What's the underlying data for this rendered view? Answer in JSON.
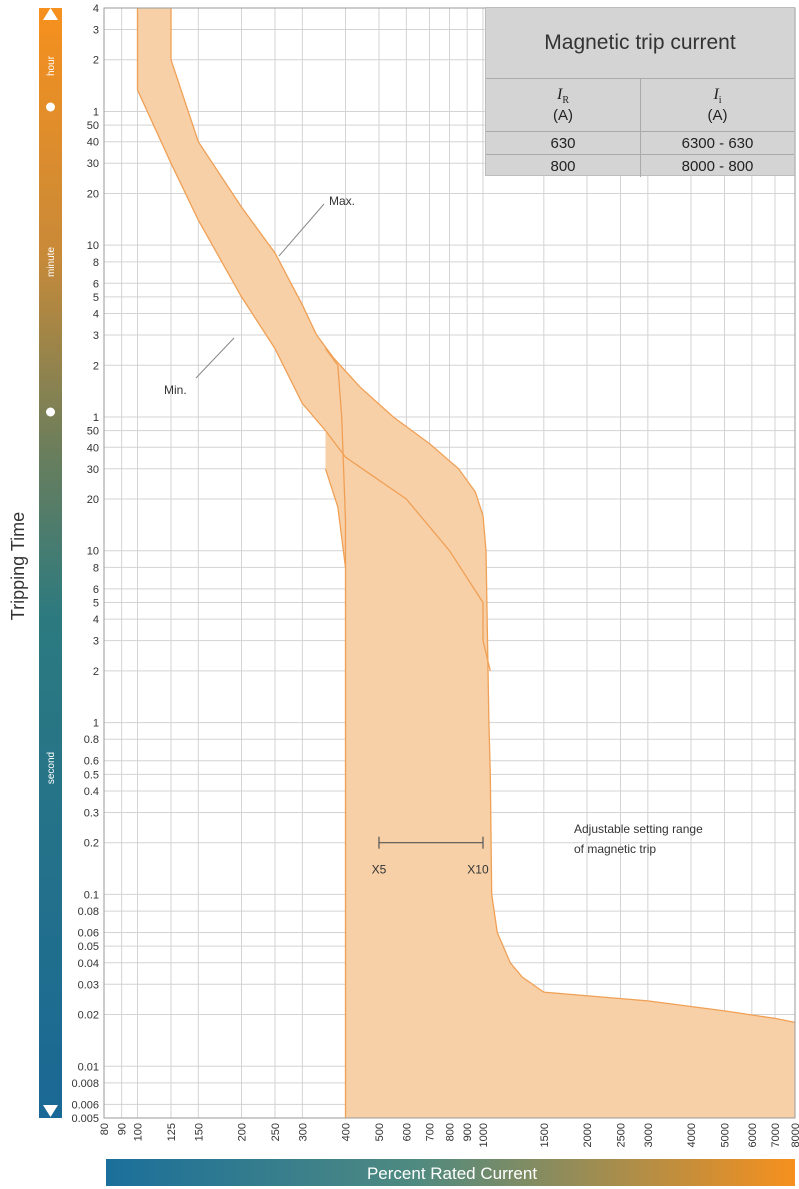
{
  "chart_data": {
    "type": "line",
    "title": "",
    "xlabel": "Percent Rated Current",
    "ylabel": "Tripping Time",
    "x_scale": "log",
    "y_scale": "log",
    "xlim": [
      80,
      8000
    ],
    "x_ticks": [
      80,
      90,
      100,
      125,
      150,
      200,
      250,
      300,
      400,
      500,
      600,
      700,
      800,
      900,
      1000,
      1500,
      2000,
      2500,
      3000,
      4000,
      5000,
      6000,
      7000,
      8000
    ],
    "x_tick_labels": [
      "80",
      "90",
      "100",
      "125",
      "150",
      "200",
      "250",
      "300",
      "400",
      "500",
      "600",
      "700",
      "800",
      "900",
      "1000",
      "1500",
      "2000",
      "2500",
      "3000",
      "4000",
      "5000",
      "6000",
      "7000",
      "8000"
    ],
    "y_ticks": [
      {
        "label": "4",
        "seconds": 14400
      },
      {
        "label": "3",
        "seconds": 10800
      },
      {
        "label": "2",
        "seconds": 7200
      },
      {
        "label": "1",
        "seconds": 3600
      },
      {
        "label": "50",
        "seconds": 3000
      },
      {
        "label": "40",
        "seconds": 2400
      },
      {
        "label": "30",
        "seconds": 1800
      },
      {
        "label": "20",
        "seconds": 1200
      },
      {
        "label": "10",
        "seconds": 600
      },
      {
        "label": "8",
        "seconds": 480
      },
      {
        "label": "6",
        "seconds": 360
      },
      {
        "label": "5",
        "seconds": 300
      },
      {
        "label": "4",
        "seconds": 240
      },
      {
        "label": "3",
        "seconds": 180
      },
      {
        "label": "2",
        "seconds": 120
      },
      {
        "label": "1",
        "seconds": 60
      },
      {
        "label": "50",
        "seconds": 50
      },
      {
        "label": "40",
        "seconds": 40
      },
      {
        "label": "30",
        "seconds": 30
      },
      {
        "label": "20",
        "seconds": 20
      },
      {
        "label": "10",
        "seconds": 10
      },
      {
        "label": "8",
        "seconds": 8
      },
      {
        "label": "6",
        "seconds": 6
      },
      {
        "label": "5",
        "seconds": 5
      },
      {
        "label": "4",
        "seconds": 4
      },
      {
        "label": "3",
        "seconds": 3
      },
      {
        "label": "2",
        "seconds": 2
      },
      {
        "label": "1",
        "seconds": 1
      },
      {
        "label": "0.8",
        "seconds": 0.8
      },
      {
        "label": "0.6",
        "seconds": 0.6
      },
      {
        "label": "0.5",
        "seconds": 0.5
      },
      {
        "label": "0.4",
        "seconds": 0.4
      },
      {
        "label": "0.3",
        "seconds": 0.3
      },
      {
        "label": "0.2",
        "seconds": 0.2
      },
      {
        "label": "0.1",
        "seconds": 0.1
      },
      {
        "label": "0.08",
        "seconds": 0.08
      },
      {
        "label": "0.06",
        "seconds": 0.06
      },
      {
        "label": "0.05",
        "seconds": 0.05
      },
      {
        "label": "0.04",
        "seconds": 0.04
      },
      {
        "label": "0.03",
        "seconds": 0.03
      },
      {
        "label": "0.02",
        "seconds": 0.02
      },
      {
        "label": "0.01",
        "seconds": 0.01
      },
      {
        "label": "0.008",
        "seconds": 0.008
      },
      {
        "label": "0.006",
        "seconds": 0.006
      },
      {
        "label": "0.005",
        "seconds": 0.005
      }
    ],
    "ylim_seconds": [
      0.005,
      14400
    ],
    "time_units": [
      "hour",
      "minute",
      "second"
    ],
    "grid": true,
    "band": {
      "max_curve": [
        [
          125,
          14400
        ],
        [
          125,
          7200
        ],
        [
          150,
          2400
        ],
        [
          200,
          1000
        ],
        [
          250,
          540
        ],
        [
          300,
          270
        ],
        [
          330,
          180
        ],
        [
          370,
          132
        ],
        [
          440,
          90
        ],
        [
          550,
          60
        ],
        [
          700,
          42
        ],
        [
          850,
          30
        ],
        [
          950,
          22
        ],
        [
          1000,
          16
        ],
        [
          1020,
          10
        ],
        [
          1040,
          1
        ],
        [
          1050,
          0.5
        ],
        [
          1060,
          0.1
        ],
        [
          1100,
          0.06
        ],
        [
          1200,
          0.04
        ],
        [
          1300,
          0.033
        ],
        [
          1500,
          0.027
        ],
        [
          3000,
          0.024
        ],
        [
          5000,
          0.021
        ],
        [
          7000,
          0.019
        ],
        [
          8000,
          0.018
        ]
      ],
      "min_curve": [
        [
          100,
          14400
        ],
        [
          100,
          4800
        ],
        [
          125,
          1800
        ],
        [
          150,
          840
        ],
        [
          200,
          300
        ],
        [
          250,
          150
        ],
        [
          300,
          72
        ],
        [
          350,
          50
        ],
        [
          400,
          35
        ],
        [
          600,
          20
        ],
        [
          800,
          10
        ],
        [
          1000,
          5
        ],
        [
          1000,
          3
        ],
        [
          1050,
          2
        ]
      ],
      "lower_edge": [
        [
          400,
          0.005
        ],
        [
          400,
          8
        ],
        [
          380,
          18
        ],
        [
          350,
          30
        ]
      ],
      "mid_curve": [
        [
          350,
          150
        ],
        [
          380,
          120
        ],
        [
          390,
          60
        ],
        [
          400,
          15
        ],
        [
          400,
          8
        ]
      ]
    },
    "colors": {
      "band_fill": "#f7d0a8",
      "band_stroke": "#f0a055",
      "bar_start": "#1a6f9b",
      "bar_end": "#f6901e"
    },
    "annotations": {
      "max": "Max.",
      "min": "Min.",
      "range_title_line1": "Adjustable setting range",
      "range_title_line2": "of magnetic trip",
      "range_start": "X5",
      "range_end": "X10",
      "range_x": [
        500,
        1000
      ],
      "range_y_seconds": 0.2
    }
  },
  "table": {
    "title": "Magnetic trip current",
    "headers": [
      {
        "symbol": "I",
        "sub": "R",
        "unit": "(A)"
      },
      {
        "symbol": "I",
        "sub": "i",
        "unit": "(A)"
      }
    ],
    "rows": [
      [
        "630",
        "6300 - 630"
      ],
      [
        "800",
        "8000 - 800"
      ]
    ]
  }
}
